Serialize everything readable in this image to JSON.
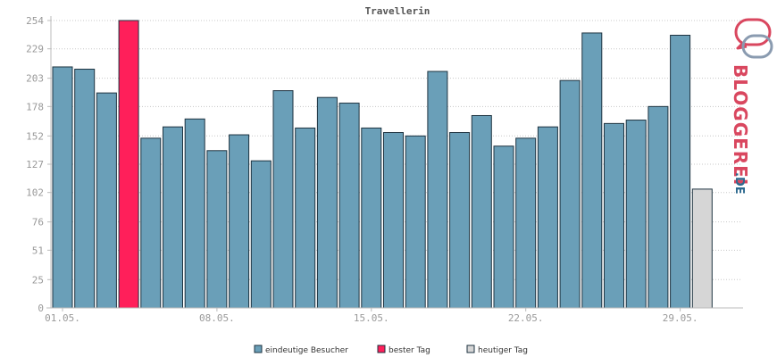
{
  "colors": {
    "regular": "#6a9fb8",
    "best": "#ff1f5a",
    "today": "#d6d6d6",
    "bar_stroke": "#1e3340",
    "grid": "#c8c8c8",
    "axis": "#bbbbbb",
    "brand_red": "#d9475f",
    "brand_blue": "#2d6a8f"
  },
  "brand": {
    "word": "BLOGGEREI",
    "suffix": ".DE",
    "icon": "chat-bubbles-logo-icon"
  },
  "chart_data": {
    "type": "bar",
    "title": "Travellerin",
    "xlabel": "",
    "ylabel": "",
    "ylim": [
      0,
      254
    ],
    "y_ticks": [
      "254",
      "229",
      "203",
      "178",
      "152",
      "127",
      "102",
      "76",
      "51",
      "25",
      "0"
    ],
    "x_ticks": [
      {
        "index": 0,
        "label": "01.05."
      },
      {
        "index": 7,
        "label": "08.05."
      },
      {
        "index": 14,
        "label": "15.05."
      },
      {
        "index": 21,
        "label": "22.05."
      },
      {
        "index": 28,
        "label": "29.05."
      }
    ],
    "days": [
      "01.05.",
      "02.05.",
      "03.05.",
      "04.05.",
      "05.05.",
      "06.05.",
      "07.05.",
      "08.05.",
      "09.05.",
      "10.05.",
      "11.05.",
      "12.05.",
      "13.05.",
      "14.05.",
      "15.05.",
      "16.05.",
      "17.05.",
      "18.05.",
      "19.05.",
      "20.05.",
      "21.05.",
      "22.05.",
      "23.05.",
      "24.05.",
      "25.05.",
      "26.05.",
      "27.05.",
      "28.05.",
      "29.05.",
      "30.05."
    ],
    "values": [
      213,
      211,
      190,
      254,
      150,
      160,
      167,
      139,
      153,
      130,
      192,
      159,
      186,
      181,
      159,
      155,
      152,
      209,
      155,
      170,
      143,
      150,
      160,
      201,
      243,
      163,
      166,
      178,
      241,
      105
    ],
    "kinds": [
      "regular",
      "regular",
      "regular",
      "best",
      "regular",
      "regular",
      "regular",
      "regular",
      "regular",
      "regular",
      "regular",
      "regular",
      "regular",
      "regular",
      "regular",
      "regular",
      "regular",
      "regular",
      "regular",
      "regular",
      "regular",
      "regular",
      "regular",
      "regular",
      "regular",
      "regular",
      "regular",
      "regular",
      "regular",
      "today"
    ],
    "grid": true,
    "legend": [
      {
        "label": "eindeutige Besucher",
        "kind": "regular"
      },
      {
        "label": "bester Tag",
        "kind": "best"
      },
      {
        "label": "heutiger Tag",
        "kind": "today"
      }
    ],
    "legend_position": "bottom"
  }
}
